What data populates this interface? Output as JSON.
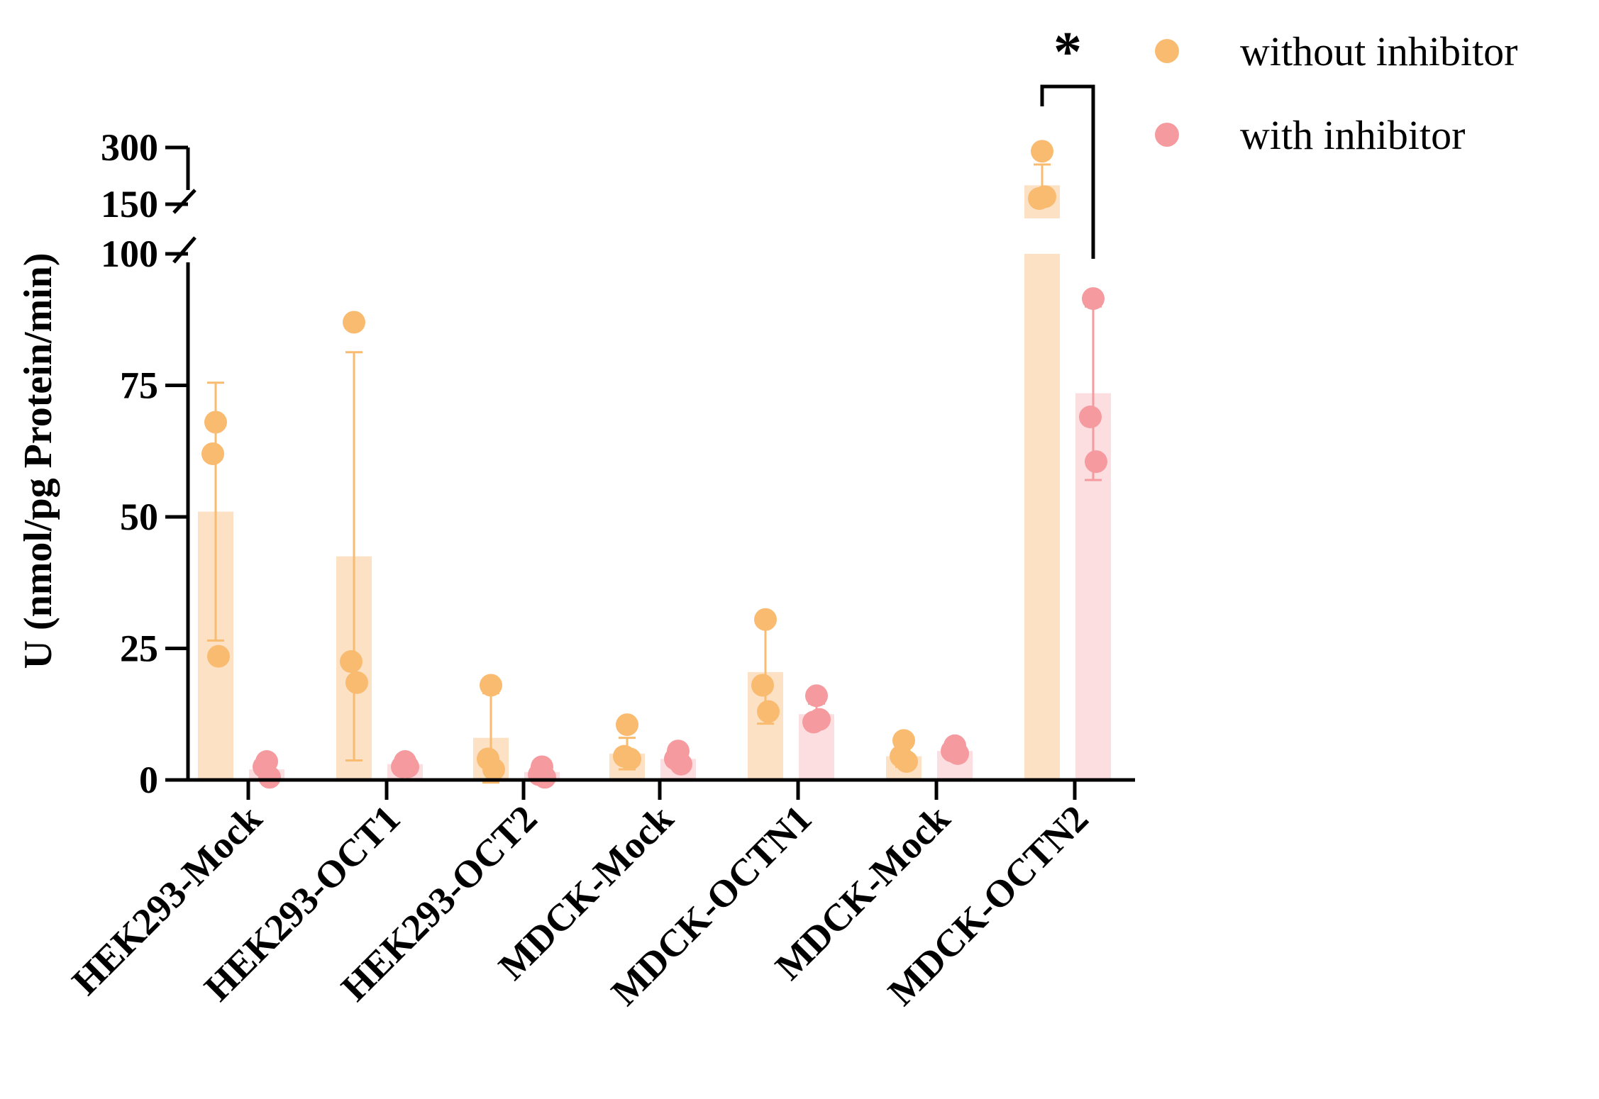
{
  "colors": {
    "without": "#F8BB70",
    "without_bar": "#FCE1C4",
    "with": "#F59A9E",
    "with_bar": "#FCDDE0",
    "axis": "#000000"
  },
  "chart_data": {
    "type": "bar",
    "title": "",
    "xlabel": "",
    "ylabel": "U (nmol/pg Protein/min)",
    "y_break": {
      "lower_max": 100,
      "upper_range": [
        150,
        300
      ]
    },
    "ylim": [
      0,
      300
    ],
    "yticks_lower": [
      0,
      25,
      50,
      75,
      100
    ],
    "yticks_upper": [
      150,
      300
    ],
    "ytick_labels": {
      "0": "0",
      "25": "25",
      "50": "50",
      "75": "75",
      "100": "100",
      "150": "150",
      "300": "300"
    },
    "categories": [
      "HEK293-Mock",
      "HEK293-OCT1",
      "HEK293-OCT2",
      "MDCK-Mock",
      "MDCK-OCTN1",
      "MDCK-Mock",
      "MDCK-OCTN2"
    ],
    "legend": {
      "position": "top-right",
      "entries": [
        "without inhibitor",
        "with inhibitor"
      ]
    },
    "series": [
      {
        "name": "without inhibitor",
        "means": [
          51,
          42.5,
          8,
          5,
          20.5,
          4.5,
          200
        ],
        "sd": [
          24.5,
          38.8,
          8.5,
          3,
          9.8,
          2,
          55
        ],
        "points": [
          [
            68,
            62,
            23.5
          ],
          [
            87,
            22.5,
            18.5
          ],
          [
            18,
            4,
            2
          ],
          [
            10.5,
            4.5,
            4
          ],
          [
            30.5,
            18,
            13
          ],
          [
            7.5,
            4.5,
            3.5
          ],
          [
            290,
            165,
            170
          ]
        ]
      },
      {
        "name": "with inhibitor",
        "means": [
          2,
          3,
          1.5,
          4,
          12.5,
          5.5,
          73.5
        ],
        "sd": [
          1.5,
          1,
          1,
          1,
          2,
          1,
          16.5
        ],
        "points": [
          [
            3.5,
            2.5,
            0.5
          ],
          [
            3.5,
            2.5,
            2.5
          ],
          [
            2.5,
            1,
            0.5
          ],
          [
            5.5,
            4,
            3
          ],
          [
            16,
            11,
            11.5
          ],
          [
            6.5,
            5.5,
            5
          ],
          [
            91.5,
            69,
            60.5
          ]
        ]
      }
    ],
    "annotations": [
      {
        "type": "significance",
        "label": "*",
        "group": "MDCK-OCTN2"
      }
    ]
  }
}
